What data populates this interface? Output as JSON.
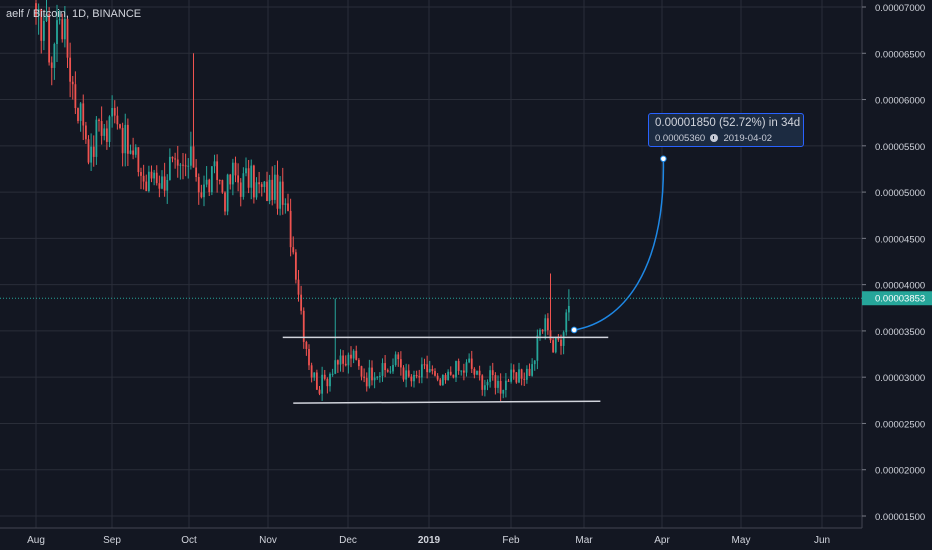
{
  "header": {
    "symbol": "aelf / Bitcoin",
    "interval": "1D",
    "exchange": "BINANCE",
    "title_text": "aelf / Bitcoin, 1D, BINANCE"
  },
  "price_scale": {
    "ticks": [
      "0.00007000",
      "0.00006500",
      "0.00006000",
      "0.00005500",
      "0.00005000",
      "0.00004500",
      "0.00004000",
      "0.00003500",
      "0.00003000",
      "0.00002500",
      "0.00002000",
      "0.00001500"
    ],
    "current_price_label": "0.00003853"
  },
  "time_scale": {
    "ticks": [
      "Aug",
      "Sep",
      "Oct",
      "Nov",
      "Dec",
      "2019",
      "Feb",
      "Mar",
      "Apr",
      "May",
      "Jun"
    ]
  },
  "projection": {
    "line1": "0.00001850 (52.72%) in 34d",
    "target_price": "0.00005360",
    "target_date": "2019-04-02"
  },
  "colors": {
    "background": "#131722",
    "up": "#26a69a",
    "down": "#ef5350",
    "text": "#d1d4dc",
    "grid": "#2a2e39",
    "arrow": "#1e88e5",
    "trendline": "#d1d4dc",
    "price_line": "#26a69a"
  },
  "chart_data": {
    "type": "candlestick",
    "symbol": "aelf / Bitcoin",
    "interval": "1D",
    "exchange": "BINANCE",
    "y_range": [
      1.35e-05,
      7.15e-05
    ],
    "y_ticks": [
      7e-05,
      6.5e-05,
      6e-05,
      5.5e-05,
      5e-05,
      4.5e-05,
      4e-05,
      3.5e-05,
      3e-05,
      2.5e-05,
      2e-05,
      1.5e-05
    ],
    "x_ticks": [
      "Aug",
      "Sep",
      "Oct",
      "Nov",
      "Dec",
      "2019",
      "Feb",
      "Mar",
      "Apr",
      "May",
      "Jun"
    ],
    "last_price": 3.853e-05,
    "anchors": [
      {
        "d": 0,
        "p": 6.72e-05
      },
      {
        "d": 3,
        "p": 6.9e-05
      },
      {
        "d": 6,
        "p": 6.4e-05
      },
      {
        "d": 9,
        "p": 7e-05
      },
      {
        "d": 12,
        "p": 6.5e-05
      },
      {
        "d": 15,
        "p": 6e-05
      },
      {
        "d": 18,
        "p": 5.8e-05
      },
      {
        "d": 21,
        "p": 5.35e-05
      },
      {
        "d": 24,
        "p": 5.8e-05
      },
      {
        "d": 27,
        "p": 5.6e-05
      },
      {
        "d": 30,
        "p": 6e-05
      },
      {
        "d": 33,
        "p": 5.6e-05
      },
      {
        "d": 36,
        "p": 5.4e-05
      },
      {
        "d": 39,
        "p": 5.3e-05
      },
      {
        "d": 42,
        "p": 5.05e-05
      },
      {
        "d": 45,
        "p": 5.25e-05
      },
      {
        "d": 48,
        "p": 5.1e-05
      },
      {
        "d": 51,
        "p": 5.3e-05
      },
      {
        "d": 54,
        "p": 5.15e-05
      },
      {
        "d": 57,
        "p": 5.25e-05
      },
      {
        "d": 60,
        "p": 5.35e-05
      },
      {
        "d": 63,
        "p": 5e-05
      },
      {
        "d": 66,
        "p": 5.1e-05
      },
      {
        "d": 69,
        "p": 5.2e-05
      },
      {
        "d": 72,
        "p": 4.95e-05
      },
      {
        "d": 75,
        "p": 5.2e-05
      },
      {
        "d": 78,
        "p": 5.1e-05
      },
      {
        "d": 81,
        "p": 5.15e-05
      },
      {
        "d": 84,
        "p": 5.05e-05
      },
      {
        "d": 87,
        "p": 5e-05
      },
      {
        "d": 90,
        "p": 5.05e-05
      },
      {
        "d": 93,
        "p": 4.95e-05
      },
      {
        "d": 96,
        "p": 4.7e-05
      },
      {
        "d": 99,
        "p": 4.2e-05
      },
      {
        "d": 102,
        "p": 3.5e-05
      },
      {
        "d": 105,
        "p": 3.05e-05
      },
      {
        "d": 108,
        "p": 2.9e-05
      },
      {
        "d": 111,
        "p": 3e-05
      },
      {
        "d": 114,
        "p": 3.2e-05
      },
      {
        "d": 117,
        "p": 3.1e-05
      },
      {
        "d": 120,
        "p": 3.25e-05
      },
      {
        "d": 123,
        "p": 3.1e-05
      },
      {
        "d": 126,
        "p": 3e-05
      },
      {
        "d": 129,
        "p": 3.1e-05
      },
      {
        "d": 132,
        "p": 3.05e-05
      },
      {
        "d": 135,
        "p": 3.1e-05
      },
      {
        "d": 138,
        "p": 3.2e-05
      },
      {
        "d": 141,
        "p": 3e-05
      },
      {
        "d": 144,
        "p": 2.95e-05
      },
      {
        "d": 147,
        "p": 3.05e-05
      },
      {
        "d": 150,
        "p": 3.1e-05
      },
      {
        "d": 153,
        "p": 2.9e-05
      },
      {
        "d": 156,
        "p": 2.95e-05
      },
      {
        "d": 159,
        "p": 3.1e-05
      },
      {
        "d": 162,
        "p": 3.05e-05
      },
      {
        "d": 165,
        "p": 3.15e-05
      },
      {
        "d": 168,
        "p": 3e-05
      },
      {
        "d": 171,
        "p": 2.95e-05
      },
      {
        "d": 174,
        "p": 3e-05
      },
      {
        "d": 177,
        "p": 2.9e-05
      },
      {
        "d": 180,
        "p": 3e-05
      },
      {
        "d": 183,
        "p": 2.95e-05
      },
      {
        "d": 186,
        "p": 3.05e-05
      },
      {
        "d": 189,
        "p": 3.1e-05
      },
      {
        "d": 192,
        "p": 3.5e-05
      },
      {
        "d": 195,
        "p": 3.6e-05
      },
      {
        "d": 197,
        "p": 3.3e-05
      },
      {
        "d": 200,
        "p": 3.45e-05
      },
      {
        "d": 203,
        "p": 3.85e-05
      }
    ],
    "spike_highs": [
      {
        "d": 60,
        "p": 6.5e-05
      },
      {
        "d": 114,
        "p": 3.85e-05
      },
      {
        "d": 196,
        "p": 4.12e-05
      },
      {
        "d": 203,
        "p": 3.95e-05
      }
    ],
    "trendlines": [
      {
        "name": "resistance",
        "start": {
          "d": 94,
          "p": 3.43e-05
        },
        "end": {
          "d": 218,
          "p": 3.43e-05
        }
      },
      {
        "name": "support",
        "start": {
          "d": 98,
          "p": 2.72e-05
        },
        "end": {
          "d": 215,
          "p": 2.74e-05
        }
      }
    ],
    "projection": {
      "start": {
        "d": 205,
        "p": 3.51e-05
      },
      "end": {
        "d": 239,
        "p": 5.36e-05
      },
      "change": "0.00001850 (52.72%) in 34d",
      "target_price": 5.36e-05,
      "target_date": "2019-04-02"
    }
  }
}
